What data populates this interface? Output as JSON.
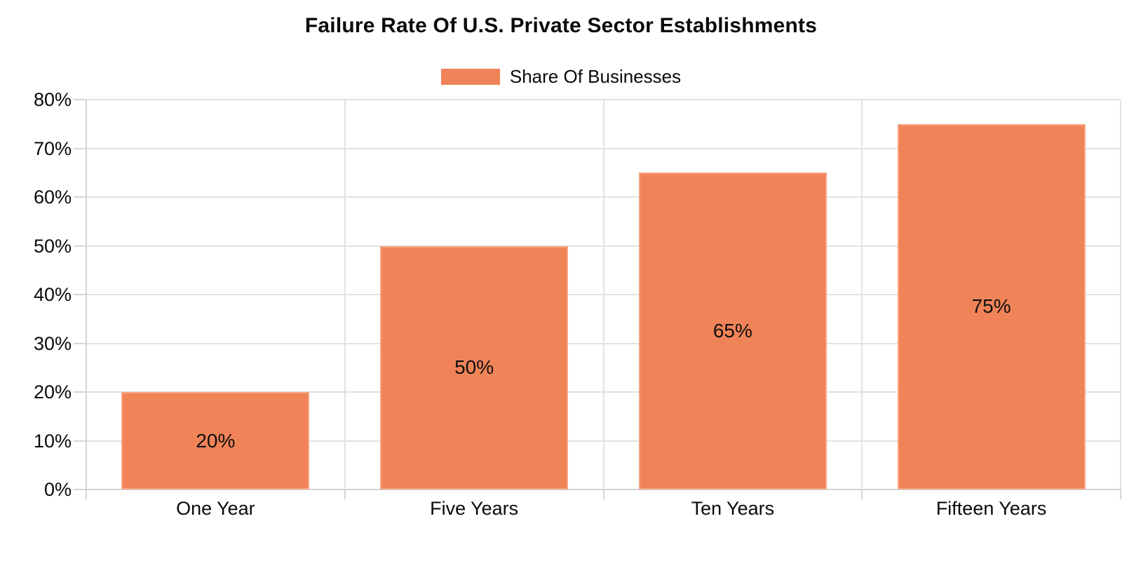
{
  "chart_data": {
    "type": "bar",
    "title": "Failure Rate Of U.S. Private Sector Establishments",
    "categories": [
      "One Year",
      "Five Years",
      "Ten Years",
      "Fifteen Years"
    ],
    "series": [
      {
        "name": "Share Of Businesses",
        "values": [
          20,
          50,
          65,
          75
        ]
      }
    ],
    "data_labels": [
      "20%",
      "50%",
      "65%",
      "75%"
    ],
    "y_tick_labels": [
      "0%",
      "10%",
      "20%",
      "30%",
      "40%",
      "50%",
      "60%",
      "70%",
      "80%"
    ],
    "ylim": [
      0,
      80
    ],
    "y_tick_step": 10,
    "grid": true,
    "legend_position": "top-center",
    "colors": {
      "bar_fill": "#F08458",
      "bar_border": "#F5A583",
      "grid_line": "#E2E2E2",
      "axis_line": "#D4D4D4",
      "text": "#111111",
      "background": "#FFFFFF"
    }
  }
}
